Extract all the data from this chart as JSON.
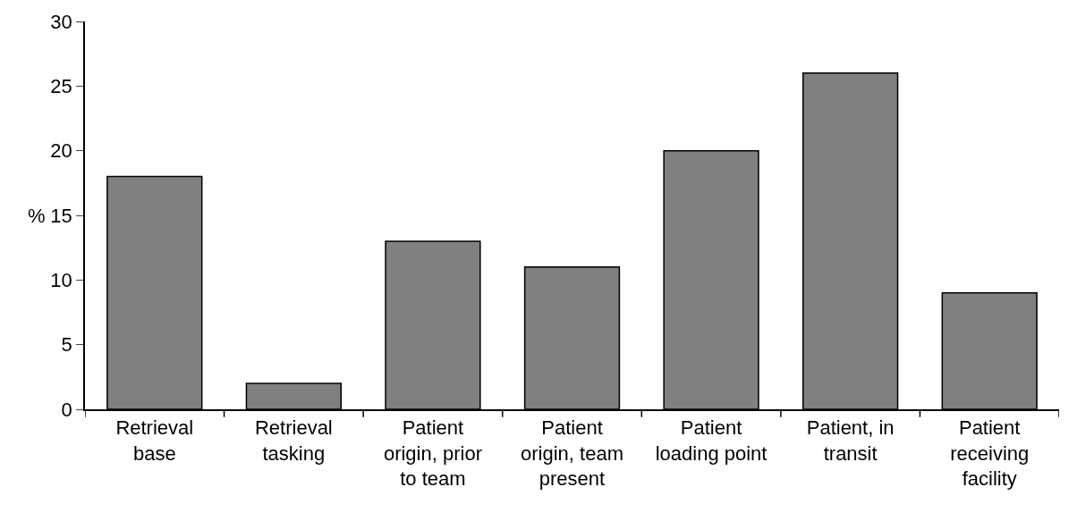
{
  "chart_data": {
    "type": "bar",
    "ylabel": "%",
    "categories": [
      "Retrieval base",
      "Retrieval tasking",
      "Patient origin, prior to team",
      "Patient origin, team present",
      "Patient loading point",
      "Patient, in transit",
      "Patient receiving facility"
    ],
    "values": [
      18,
      2,
      13,
      11,
      20,
      26,
      9
    ],
    "color": "#808080",
    "ylim": [
      0,
      30
    ],
    "yticks": [
      0,
      5,
      10,
      15,
      20,
      25,
      30
    ],
    "legend": false
  }
}
